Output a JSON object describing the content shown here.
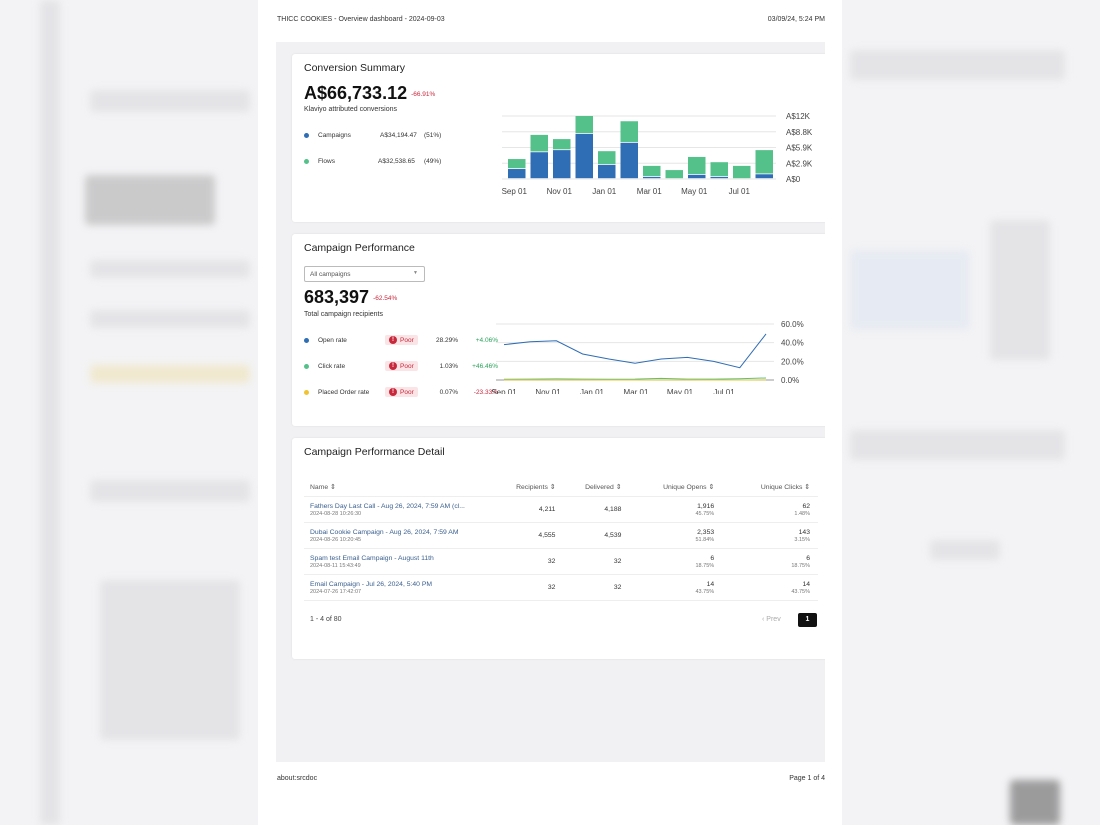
{
  "print_header": {
    "left": "THICC COOKIES - Overview dashboard - 2024-09-03",
    "right": "03/09/24, 5:24 PM"
  },
  "print_footer": {
    "left": "about:srcdoc",
    "right": "Page 1 of 4"
  },
  "colors": {
    "campaigns": "#2f6db5",
    "flows": "#55c18a",
    "placed_order": "#f2c331",
    "poor": "#c9283c",
    "positive": "#2aa35a"
  },
  "conversion_summary": {
    "title": "Conversion Summary",
    "total": "A$66,733.12",
    "delta": "-66.91%",
    "subtitle": "Klaviyo attributed conversions",
    "legend": [
      {
        "label": "Campaigns",
        "value": "A$34,194.47",
        "pct": "(51%)"
      },
      {
        "label": "Flows",
        "value": "A$32,538.65",
        "pct": "(49%)"
      }
    ]
  },
  "campaign_performance": {
    "title": "Campaign Performance",
    "dropdown": "All campaigns",
    "total": "683,397",
    "delta": "-62.54%",
    "subtitle": "Total campaign recipients",
    "metrics": [
      {
        "label": "Open rate",
        "badge": "Poor",
        "value": "28.29%",
        "change": "+4.06%"
      },
      {
        "label": "Click rate",
        "badge": "Poor",
        "value": "1.03%",
        "change": "+46.46%"
      },
      {
        "label": "Placed Order rate",
        "badge": "Poor",
        "value": "0.07%",
        "change": "-23.33%"
      }
    ]
  },
  "detail": {
    "title": "Campaign Performance Detail",
    "columns": [
      "Name",
      "Recipients",
      "Delivered",
      "Unique Opens",
      "Unique Clicks"
    ],
    "rows": [
      {
        "name": "Fathers Day Last Call - Aug 26, 2024, 7:59 AM (cl...",
        "date": "2024-08-28 10:26:30",
        "recipients": "4,211",
        "delivered": "4,188",
        "opens": "1,916",
        "opens_pct": "45.75%",
        "clicks": "62",
        "clicks_pct": "1.48%"
      },
      {
        "name": "Dubai Cookie Campaign - Aug 26, 2024, 7:59 AM",
        "date": "2024-08-26 10:20:45",
        "recipients": "4,555",
        "delivered": "4,539",
        "opens": "2,353",
        "opens_pct": "51.84%",
        "clicks": "143",
        "clicks_pct": "3.15%"
      },
      {
        "name": "Spam test Email Campaign - August 11th",
        "date": "2024-08-11 15:43:49",
        "recipients": "32",
        "delivered": "32",
        "opens": "6",
        "opens_pct": "18.75%",
        "clicks": "6",
        "clicks_pct": "18.75%"
      },
      {
        "name": "Email Campaign - Jul 26, 2024, 5:40 PM",
        "date": "2024-07-26 17:42:07",
        "recipients": "32",
        "delivered": "32",
        "opens": "14",
        "opens_pct": "43.75%",
        "clicks": "14",
        "clicks_pct": "43.75%"
      }
    ],
    "range": "1 - 4 of 80",
    "prev": "Prev",
    "page": "1"
  },
  "chart_data": [
    {
      "type": "bar",
      "stacked": true,
      "categories": [
        "Sep",
        "Oct",
        "Nov",
        "Dec",
        "Jan",
        "Feb",
        "Mar",
        "Apr",
        "May",
        "Jun",
        "Jul",
        "Aug"
      ],
      "x_ticks": [
        "Sep 01",
        "Nov 01",
        "Jan 01",
        "Mar 01",
        "May 01",
        "Jul 01"
      ],
      "y_ticks": [
        "A$0",
        "A$2.9K",
        "A$5.9K",
        "A$8.8K",
        "A$12K"
      ],
      "ylim": [
        0,
        12000
      ],
      "series": [
        {
          "name": "Campaigns",
          "values": [
            1900,
            5100,
            5500,
            8600,
            2700,
            6900,
            400,
            0,
            800,
            400,
            0,
            900
          ]
        },
        {
          "name": "Flows",
          "values": [
            1900,
            3300,
            2100,
            3400,
            2600,
            4100,
            2100,
            1700,
            3400,
            2800,
            2500,
            4600
          ]
        }
      ]
    },
    {
      "type": "line",
      "x_ticks": [
        "Sep 01",
        "Nov 01",
        "Jan 01",
        "Mar 01",
        "May 01",
        "Jul 01"
      ],
      "y_ticks": [
        "0.0%",
        "20.0%",
        "40.0%",
        "60.0%"
      ],
      "ylim": [
        0,
        60
      ],
      "series": [
        {
          "name": "Open rate",
          "values": [
            37.9,
            41,
            42,
            27.9,
            22.5,
            17.9,
            22.5,
            24.3,
            20,
            13.2,
            49.3
          ]
        },
        {
          "name": "Click rate",
          "values": [
            0.8,
            1,
            1.2,
            0.9,
            0.8,
            0.9,
            1.8,
            1,
            1,
            1.3,
            2.2
          ]
        },
        {
          "name": "Placed Order rate",
          "values": [
            0.1,
            0.1,
            0.1,
            0.1,
            0,
            0,
            0.1,
            0.1,
            0,
            0,
            0.1
          ]
        }
      ]
    }
  ]
}
